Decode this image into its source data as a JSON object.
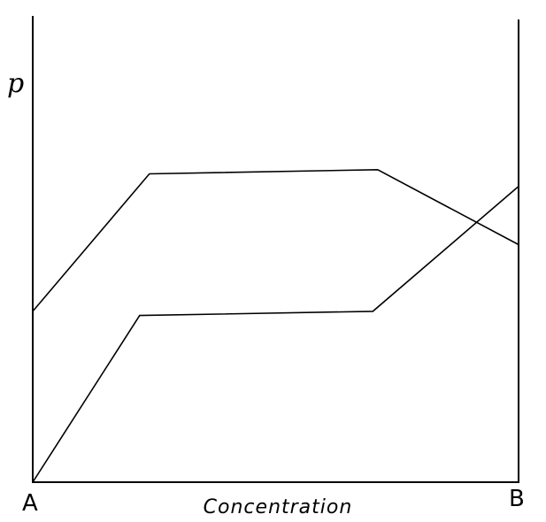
{
  "chart_data": {
    "type": "line",
    "title": "",
    "xlabel": "Concentration",
    "ylabel": "p",
    "x_start_label": "A",
    "x_end_label": "B",
    "xlim": [
      0,
      100
    ],
    "ylim": [
      0,
      100
    ],
    "grid": false,
    "series": [
      {
        "x": [
          0,
          24,
          71,
          100
        ],
        "values": [
          41,
          74,
          75,
          57
        ]
      },
      {
        "x": [
          0,
          22,
          70,
          100
        ],
        "values": [
          0,
          40,
          41,
          71
        ]
      }
    ]
  }
}
